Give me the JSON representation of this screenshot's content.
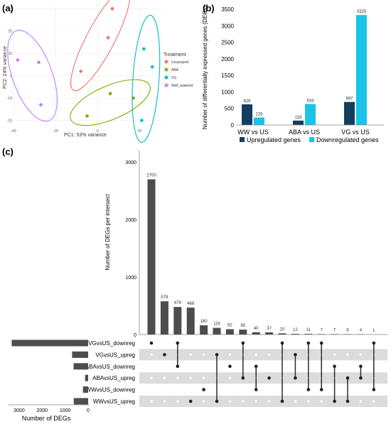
{
  "panels": {
    "a": "(a)",
    "b": "(b)",
    "c": "(c)"
  },
  "chart_data": [
    {
      "type": "scatter",
      "panel": "(a)",
      "xlabel": "PC1: 53% variance",
      "ylabel": "PC2: 24% variance",
      "xlim": [
        -40,
        31
      ],
      "ylim": [
        -23,
        32
      ],
      "x_ticks": [
        -40,
        -20,
        0,
        20
      ],
      "y_ticks": [
        -20,
        -10,
        0,
        10,
        20,
        30
      ],
      "grid": true,
      "legend_title": "Treatment",
      "legend_position": "right",
      "series": [
        {
          "name": "Unsprayed",
          "color": "#F0746A",
          "points": [
            [
              7,
              30
            ],
            [
              5,
              17
            ],
            [
              -8,
              2
            ]
          ]
        },
        {
          "name": "ABA",
          "color": "#7CAE00",
          "points": [
            [
              -5,
              -18
            ],
            [
              6,
              -8
            ],
            [
              17,
              -10
            ]
          ]
        },
        {
          "name": "VG",
          "color": "#00BFC4",
          "points": [
            [
              22,
              12
            ],
            [
              26,
              4
            ],
            [
              21,
              -20
            ]
          ]
        },
        {
          "name": "Well_watered",
          "color": "#C77CFF",
          "points": [
            [
              -38,
              7
            ],
            [
              -28,
              6
            ],
            [
              -27,
              -13
            ]
          ]
        }
      ]
    },
    {
      "type": "bar",
      "panel": "(b)",
      "ylabel": "Number of differentially expressed genes (DEGs)",
      "categories": [
        "WW vs US",
        "ABA vs US",
        "VG vs US"
      ],
      "ylim": [
        0,
        3500
      ],
      "y_ticks": [
        0,
        500,
        1000,
        1500,
        2000,
        2500,
        3000,
        3500
      ],
      "legend_position": "bottom",
      "series": [
        {
          "name": "Upregulated genes",
          "color": "#123D5E",
          "values": [
            626,
            133,
            697
          ]
        },
        {
          "name": "Downregulated genes",
          "color": "#1AC3E8",
          "values": [
            226,
            634,
            3325
          ]
        }
      ]
    },
    {
      "type": "bar",
      "panel": "(c)",
      "subtype": "upset-intersections",
      "ylabel": "Number of DEGs per intersect",
      "ylim": [
        0,
        3200
      ],
      "y_ticks": [
        0,
        1000,
        2000,
        3000
      ],
      "values": [
        2700,
        578,
        479,
        468,
        160,
        116,
        92,
        85,
        40,
        37,
        20,
        12,
        11,
        7,
        7,
        6,
        4,
        1
      ],
      "sets": [
        "VGvsUS_downreg",
        "VGvsUS_upreg",
        "ABAvsUS_downreg",
        "ABAvsUS_upreg",
        "WWvsUS_downreg",
        "WWvsUS_upreg"
      ],
      "membership": [
        [
          0
        ],
        [
          1
        ],
        [
          0,
          2
        ],
        [
          5
        ],
        [
          4
        ],
        [
          1,
          5
        ],
        [
          2
        ],
        [
          0,
          3
        ],
        [
          2,
          4
        ],
        [
          3
        ],
        [
          0,
          5
        ],
        [
          1,
          3
        ],
        [
          0,
          4
        ],
        [
          0,
          4
        ],
        [
          2,
          5
        ],
        [
          3,
          5
        ],
        [
          2,
          3
        ],
        [
          0,
          4
        ]
      ],
      "bar_color": "#4D4D4D"
    },
    {
      "type": "bar",
      "panel": "(c)",
      "subtype": "upset-set-sizes",
      "xlabel": "Number of DEGs",
      "xlim": [
        0,
        3400
      ],
      "x_ticks": [
        3000,
        2000,
        1000,
        0
      ],
      "categories": [
        "VGvsUS_downreg",
        "VGvsUS_upreg",
        "ABAvsUS_downreg",
        "ABAvsUS_upreg",
        "WWvsUS_downreg",
        "WWvsUS_upreg"
      ],
      "values": [
        3325,
        697,
        634,
        133,
        226,
        626
      ]
    }
  ]
}
